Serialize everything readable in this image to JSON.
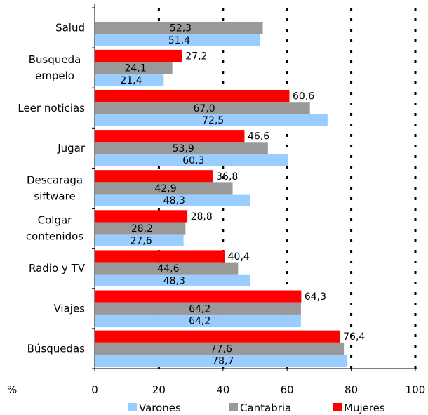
{
  "chart_data": {
    "type": "bar",
    "orientation": "horizontal",
    "categories": [
      "Salud",
      "Busqueda empelo",
      "Leer noticias",
      "Jugar",
      "Descaraga siftware",
      "Colgar contenidos",
      "Radio y TV",
      "Viajes",
      "Búsquedas"
    ],
    "series": [
      {
        "name": "Mujeres",
        "color": "#ff0000",
        "values": [
          null,
          27.2,
          60.6,
          46.6,
          36.8,
          28.8,
          40.4,
          64.3,
          76.4
        ],
        "labels": [
          "",
          "27,2",
          "60,6",
          "46,6",
          "36,8",
          "28,8",
          "40,4",
          "64,3",
          "76,4"
        ]
      },
      {
        "name": "Cantabria",
        "color": "#999999",
        "values": [
          52.3,
          24.1,
          67.0,
          53.9,
          42.9,
          28.2,
          44.6,
          64.2,
          77.6
        ],
        "labels": [
          "52,3",
          "24,1",
          "67,0",
          "53,9",
          "42,9",
          "28,2",
          "44,6",
          "64,2",
          "77,6"
        ]
      },
      {
        "name": "Varones",
        "color": "#99ccff",
        "values": [
          51.4,
          21.4,
          72.5,
          60.3,
          48.3,
          27.6,
          48.3,
          64.2,
          78.7
        ],
        "labels": [
          "51,4",
          "21,4",
          "72,5",
          "60,3",
          "48,3",
          "27,6",
          "48,3",
          "64,2",
          "78,7"
        ]
      }
    ],
    "xlim": [
      0,
      100
    ],
    "xticks": [
      "0",
      "20",
      "40",
      "60",
      "80",
      "100"
    ],
    "xlabel": "%",
    "gridlines": "dotted-vertical",
    "legend": {
      "position": "bottom",
      "order": [
        "Varones",
        "Cantabria",
        "Mujeres"
      ]
    }
  }
}
